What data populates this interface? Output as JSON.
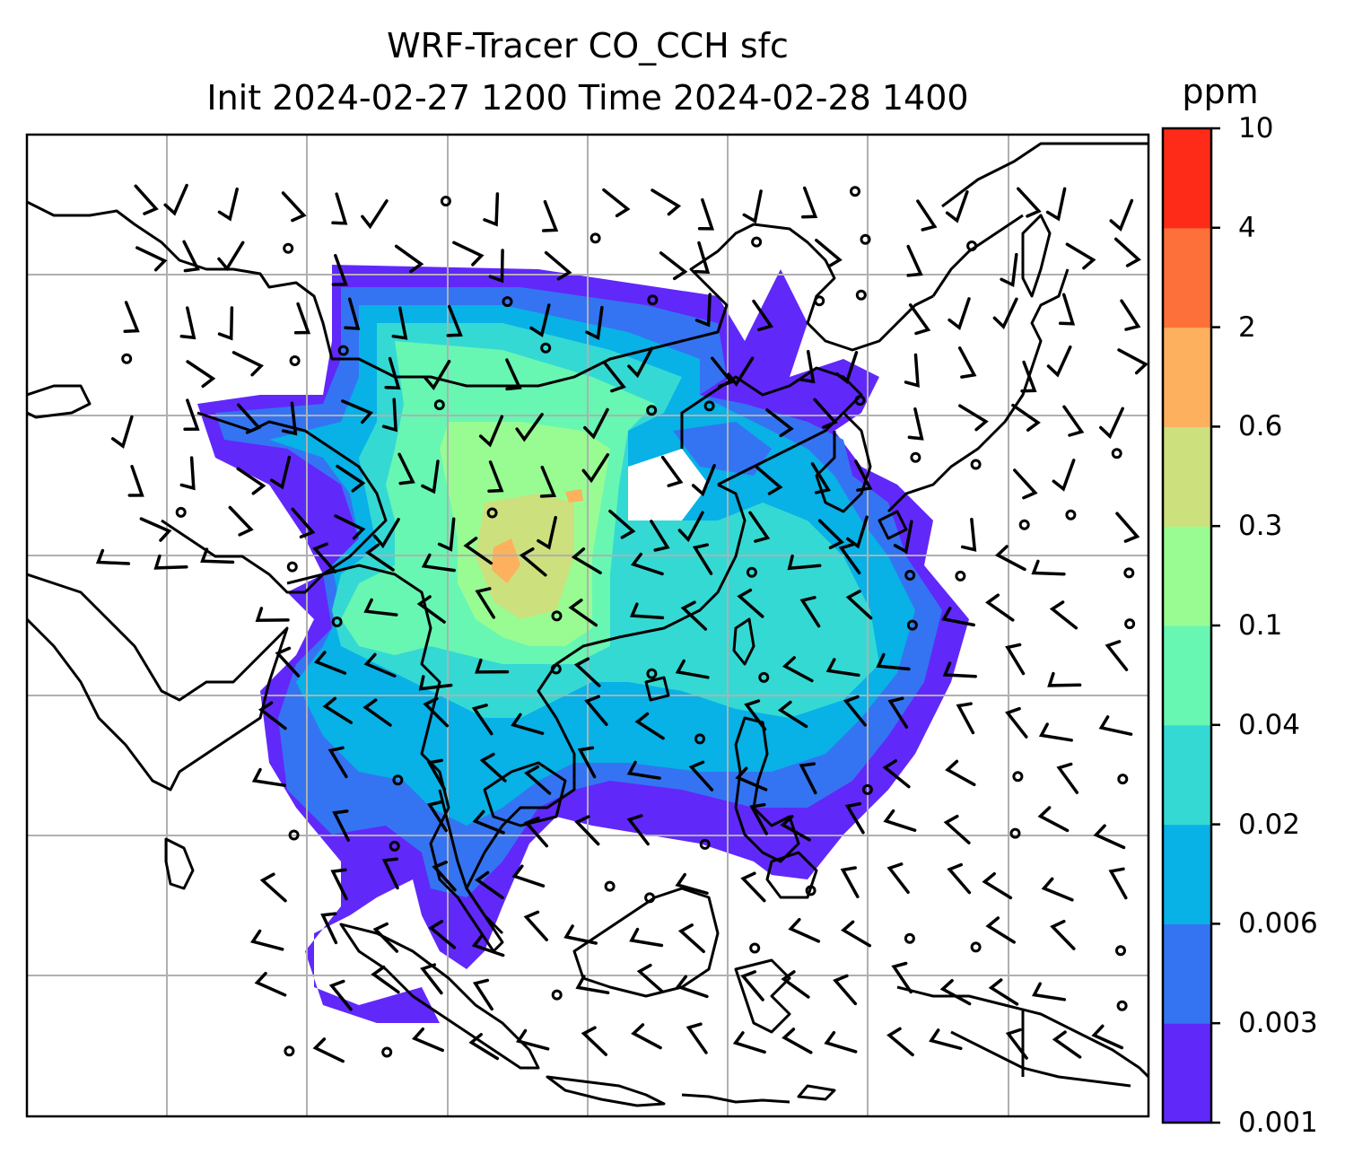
{
  "title": {
    "line1": "WRF-Tracer CO_CCH sfc",
    "line2": "Init 2024-02-27 1200 Time 2024-02-28 1400"
  },
  "colorbar": {
    "units": "ppm",
    "labels": [
      "0.001",
      "0.003",
      "0.006",
      "0.02",
      "0.04",
      "0.1",
      "0.3",
      "0.6",
      "2",
      "4",
      "10"
    ],
    "colors": [
      "#6128fa",
      "#3474f2",
      "#08b1e6",
      "#35d9d3",
      "#68f6b3",
      "#98fc93",
      "#cde07e",
      "#fdb05e",
      "#fd7039",
      "#fd2b17"
    ]
  },
  "map": {
    "type": "filled-contour with wind barbs",
    "region": "South, Southeast and East Asia",
    "gridlines": true,
    "coastlines": true,
    "wind_barbs": true
  }
}
